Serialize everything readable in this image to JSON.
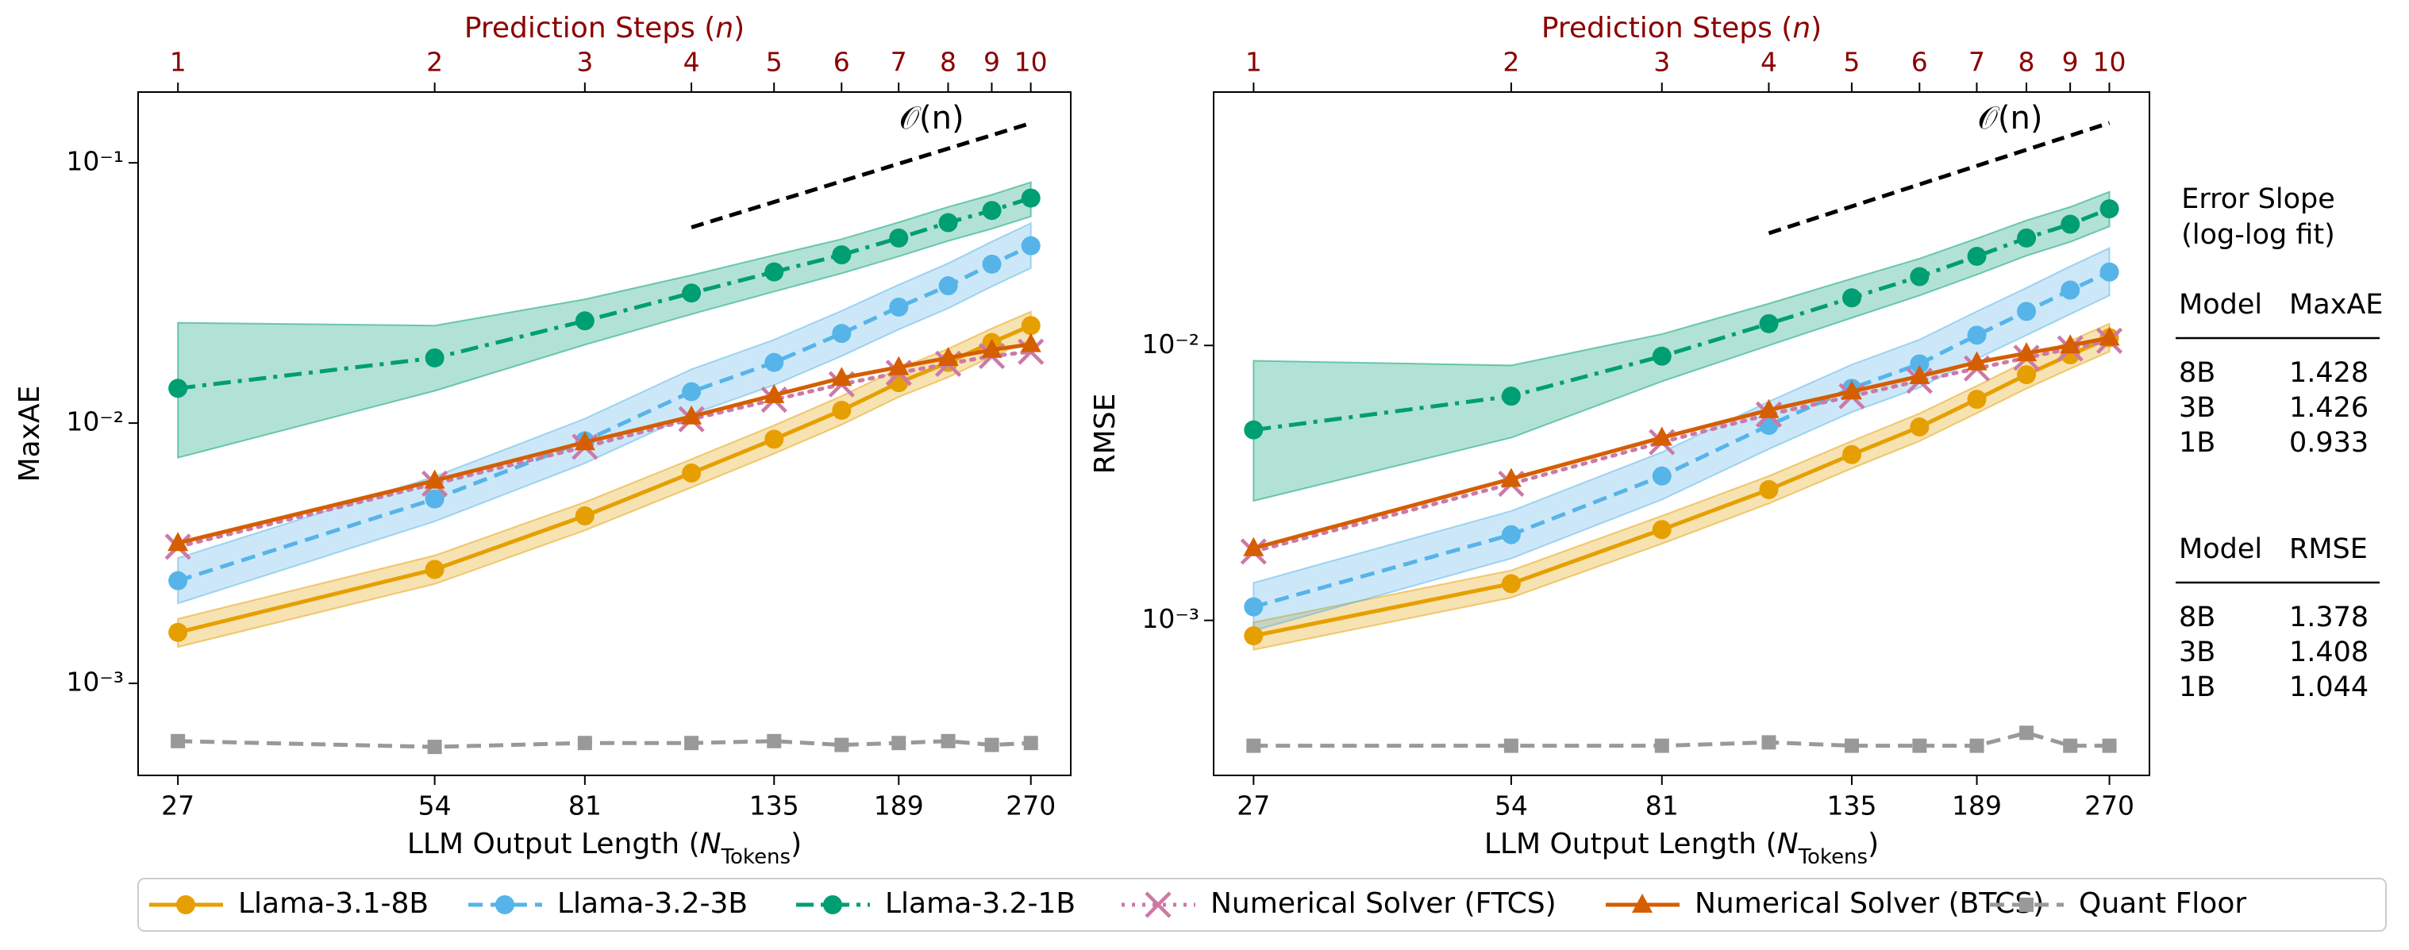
{
  "chart_data": [
    {
      "type": "line",
      "log_x": true,
      "log_y": true,
      "xlabel": [
        "LLM Output Length (",
        "N",
        "Tokens",
        ")"
      ],
      "x2label": [
        "Prediction Steps (",
        "n",
        ")"
      ],
      "ylabel": "MaxAE",
      "x": [
        27,
        54,
        81,
        108,
        135,
        162,
        189,
        216,
        243,
        270
      ],
      "xlim": [
        24.25,
        300.7
      ],
      "xticks": [
        27,
        54,
        81,
        135,
        189,
        270
      ],
      "x2lim": [
        0.898,
        11.14
      ],
      "x2ticks": [
        1,
        2,
        3,
        4,
        5,
        6,
        7,
        8,
        9,
        10
      ],
      "ylim": [
        0.000443,
        0.187
      ],
      "yticks": [
        {
          "value": 0.001,
          "label": "10⁻³"
        },
        {
          "value": 0.01,
          "label": "10⁻²"
        },
        {
          "value": 0.1,
          "label": "10⁻¹"
        }
      ],
      "reference": {
        "label": "𝒪(n)",
        "x": [
          108,
          270
        ],
        "y": [
          0.0565,
          0.142
        ]
      },
      "series": [
        {
          "name": "Llama-3.1-8B",
          "color": "#e69f00",
          "linestyle": "solid",
          "marker": "o",
          "values": [
            0.00157,
            0.00274,
            0.0044,
            0.00643,
            0.00867,
            0.0112,
            0.0143,
            0.0171,
            0.0204,
            0.0237
          ],
          "lower": [
            0.00138,
            0.00241,
            0.00387,
            0.00566,
            0.00763,
            0.00986,
            0.0126,
            0.015,
            0.018,
            0.0209
          ],
          "upper": [
            0.00177,
            0.0031,
            0.00497,
            0.00727,
            0.0098,
            0.0127,
            0.0162,
            0.0193,
            0.0231,
            0.0268
          ]
        },
        {
          "name": "Llama-3.2-3B",
          "color": "#56b4e9",
          "linestyle": "dashed",
          "marker": "o",
          "values": [
            0.00248,
            0.00511,
            0.00855,
            0.0132,
            0.0171,
            0.0221,
            0.0279,
            0.0337,
            0.0408,
            0.048
          ],
          "lower": [
            0.00203,
            0.00419,
            0.00701,
            0.0108,
            0.014,
            0.0181,
            0.0229,
            0.0276,
            0.0335,
            0.0394
          ],
          "upper": [
            0.00303,
            0.00623,
            0.0104,
            0.0161,
            0.0209,
            0.027,
            0.034,
            0.0411,
            0.0498,
            0.0586
          ]
        },
        {
          "name": "Llama-3.2-1B",
          "color": "#009e73",
          "linestyle": "dashdot",
          "marker": "o",
          "values": [
            0.0136,
            0.0178,
            0.0247,
            0.0316,
            0.0381,
            0.0443,
            0.0514,
            0.0589,
            0.0656,
            0.0732
          ],
          "lower": [
            0.00736,
            0.0133,
            0.02,
            0.0262,
            0.032,
            0.0376,
            0.0437,
            0.0501,
            0.0558,
            0.0622
          ],
          "upper": [
            0.0243,
            0.0237,
            0.0299,
            0.037,
            0.0442,
            0.0509,
            0.0591,
            0.0677,
            0.0754,
            0.0842
          ]
        },
        {
          "name": "Numerical Solver (FTCS)",
          "color": "#cc79a7",
          "linestyle": "dotted",
          "marker": "x",
          "values": [
            0.00335,
            0.00585,
            0.00811,
            0.01035,
            0.0123,
            0.0141,
            0.0156,
            0.0169,
            0.0181,
            0.0188
          ]
        },
        {
          "name": "Numerical Solver (BTCS)",
          "color": "#d55e00",
          "linestyle": "solid",
          "marker": "^",
          "values": [
            0.00346,
            0.00601,
            0.00844,
            0.0106,
            0.0128,
            0.0149,
            0.0164,
            0.0178,
            0.0191,
            0.0201
          ]
        },
        {
          "name": "Quant Floor",
          "color": "#999999",
          "linestyle": "dashed",
          "marker": "s",
          "values": [
            0.0006,
            0.00057,
            0.00059,
            0.00059,
            0.0006,
            0.00058,
            0.00059,
            0.0006,
            0.00058,
            0.00059
          ]
        }
      ]
    },
    {
      "type": "line",
      "log_x": true,
      "log_y": true,
      "xlabel": [
        "LLM Output Length (",
        "N",
        "Tokens",
        ")"
      ],
      "x2label": [
        "Prediction Steps (",
        "n",
        ")"
      ],
      "ylabel": "RMSE",
      "x": [
        27,
        54,
        81,
        108,
        135,
        162,
        189,
        216,
        243,
        270
      ],
      "xlim": [
        24.25,
        300.7
      ],
      "xticks": [
        27,
        54,
        81,
        135,
        189,
        270
      ],
      "x2lim": [
        0.898,
        11.14
      ],
      "x2ticks": [
        1,
        2,
        3,
        4,
        5,
        6,
        7,
        8,
        9,
        10
      ],
      "ylim": [
        0.000273,
        0.0835
      ],
      "yticks": [
        {
          "value": 0.001,
          "label": "10⁻³"
        },
        {
          "value": 0.01,
          "label": "10⁻²"
        }
      ],
      "reference": {
        "label": "𝒪(n)",
        "x": [
          108,
          270
        ],
        "y": [
          0.0256,
          0.0645
        ]
      },
      "series": [
        {
          "name": "Llama-3.1-8B",
          "color": "#e69f00",
          "linestyle": "solid",
          "marker": "o",
          "values": [
            0.000879,
            0.00136,
            0.00214,
            0.00299,
            0.00401,
            0.00505,
            0.00637,
            0.00783,
            0.00925,
            0.01067
          ],
          "lower": [
            0.000782,
            0.00121,
            0.0019,
            0.00266,
            0.00357,
            0.00449,
            0.00567,
            0.00697,
            0.00823,
            0.0095
          ],
          "upper": [
            0.000984,
            0.00152,
            0.0024,
            0.00335,
            0.00449,
            0.00566,
            0.00713,
            0.00877,
            0.0104,
            0.012
          ]
        },
        {
          "name": "Llama-3.2-3B",
          "color": "#56b4e9",
          "linestyle": "dashed",
          "marker": "o",
          "values": [
            0.00112,
            0.00205,
            0.00335,
            0.00512,
            0.00698,
            0.00857,
            0.0109,
            0.0133,
            0.0159,
            0.0185
          ],
          "lower": [
            0.000918,
            0.00168,
            0.00275,
            0.0042,
            0.00572,
            0.00703,
            0.00894,
            0.0109,
            0.013,
            0.0152
          ],
          "upper": [
            0.00137,
            0.0025,
            0.00409,
            0.00625,
            0.00852,
            0.0105,
            0.0133,
            0.0162,
            0.0194,
            0.0226
          ]
        },
        {
          "name": "Llama-3.2-1B",
          "color": "#009e73",
          "linestyle": "dashdot",
          "marker": "o",
          "values": [
            0.00493,
            0.00654,
            0.00914,
            0.012,
            0.0149,
            0.0178,
            0.0211,
            0.0246,
            0.0276,
            0.0314
          ],
          "lower": [
            0.00272,
            0.00462,
            0.0074,
            0.01,
            0.0126,
            0.0152,
            0.0181,
            0.0212,
            0.0238,
            0.0271
          ],
          "upper": [
            0.0088,
            0.00846,
            0.011,
            0.0142,
            0.0175,
            0.0207,
            0.0245,
            0.0285,
            0.0319,
            0.0362
          ]
        },
        {
          "name": "Numerical Solver (FTCS)",
          "color": "#cc79a7",
          "linestyle": "dotted",
          "marker": "x",
          "values": [
            0.00178,
            0.00314,
            0.00445,
            0.00561,
            0.00654,
            0.00744,
            0.00825,
            0.00902,
            0.00975,
            0.0104
          ]
        },
        {
          "name": "Numerical Solver (BTCS)",
          "color": "#d55e00",
          "linestyle": "solid",
          "marker": "^",
          "values": [
            0.00183,
            0.00327,
            0.00462,
            0.00582,
            0.0068,
            0.00773,
            0.00868,
            0.00937,
            0.01,
            0.01067
          ]
        },
        {
          "name": "Quant Floor",
          "color": "#999999",
          "linestyle": "dashed",
          "marker": "s",
          "values": [
            0.00035,
            0.00035,
            0.00035,
            0.00036,
            0.00035,
            0.00035,
            0.00035,
            0.00039,
            0.00035,
            0.00035
          ]
        }
      ]
    }
  ],
  "table": {
    "title": [
      "Error Slope",
      "(log-log fit)"
    ],
    "sections": [
      {
        "columns": [
          "Model",
          "MaxAE"
        ],
        "rows": [
          [
            "8B",
            "1.428"
          ],
          [
            "3B",
            "1.426"
          ],
          [
            "1B",
            "0.933"
          ]
        ]
      },
      {
        "columns": [
          "Model",
          "RMSE"
        ],
        "rows": [
          [
            "8B",
            "1.378"
          ],
          [
            "3B",
            "1.408"
          ],
          [
            "1B",
            "1.044"
          ]
        ]
      }
    ]
  }
}
